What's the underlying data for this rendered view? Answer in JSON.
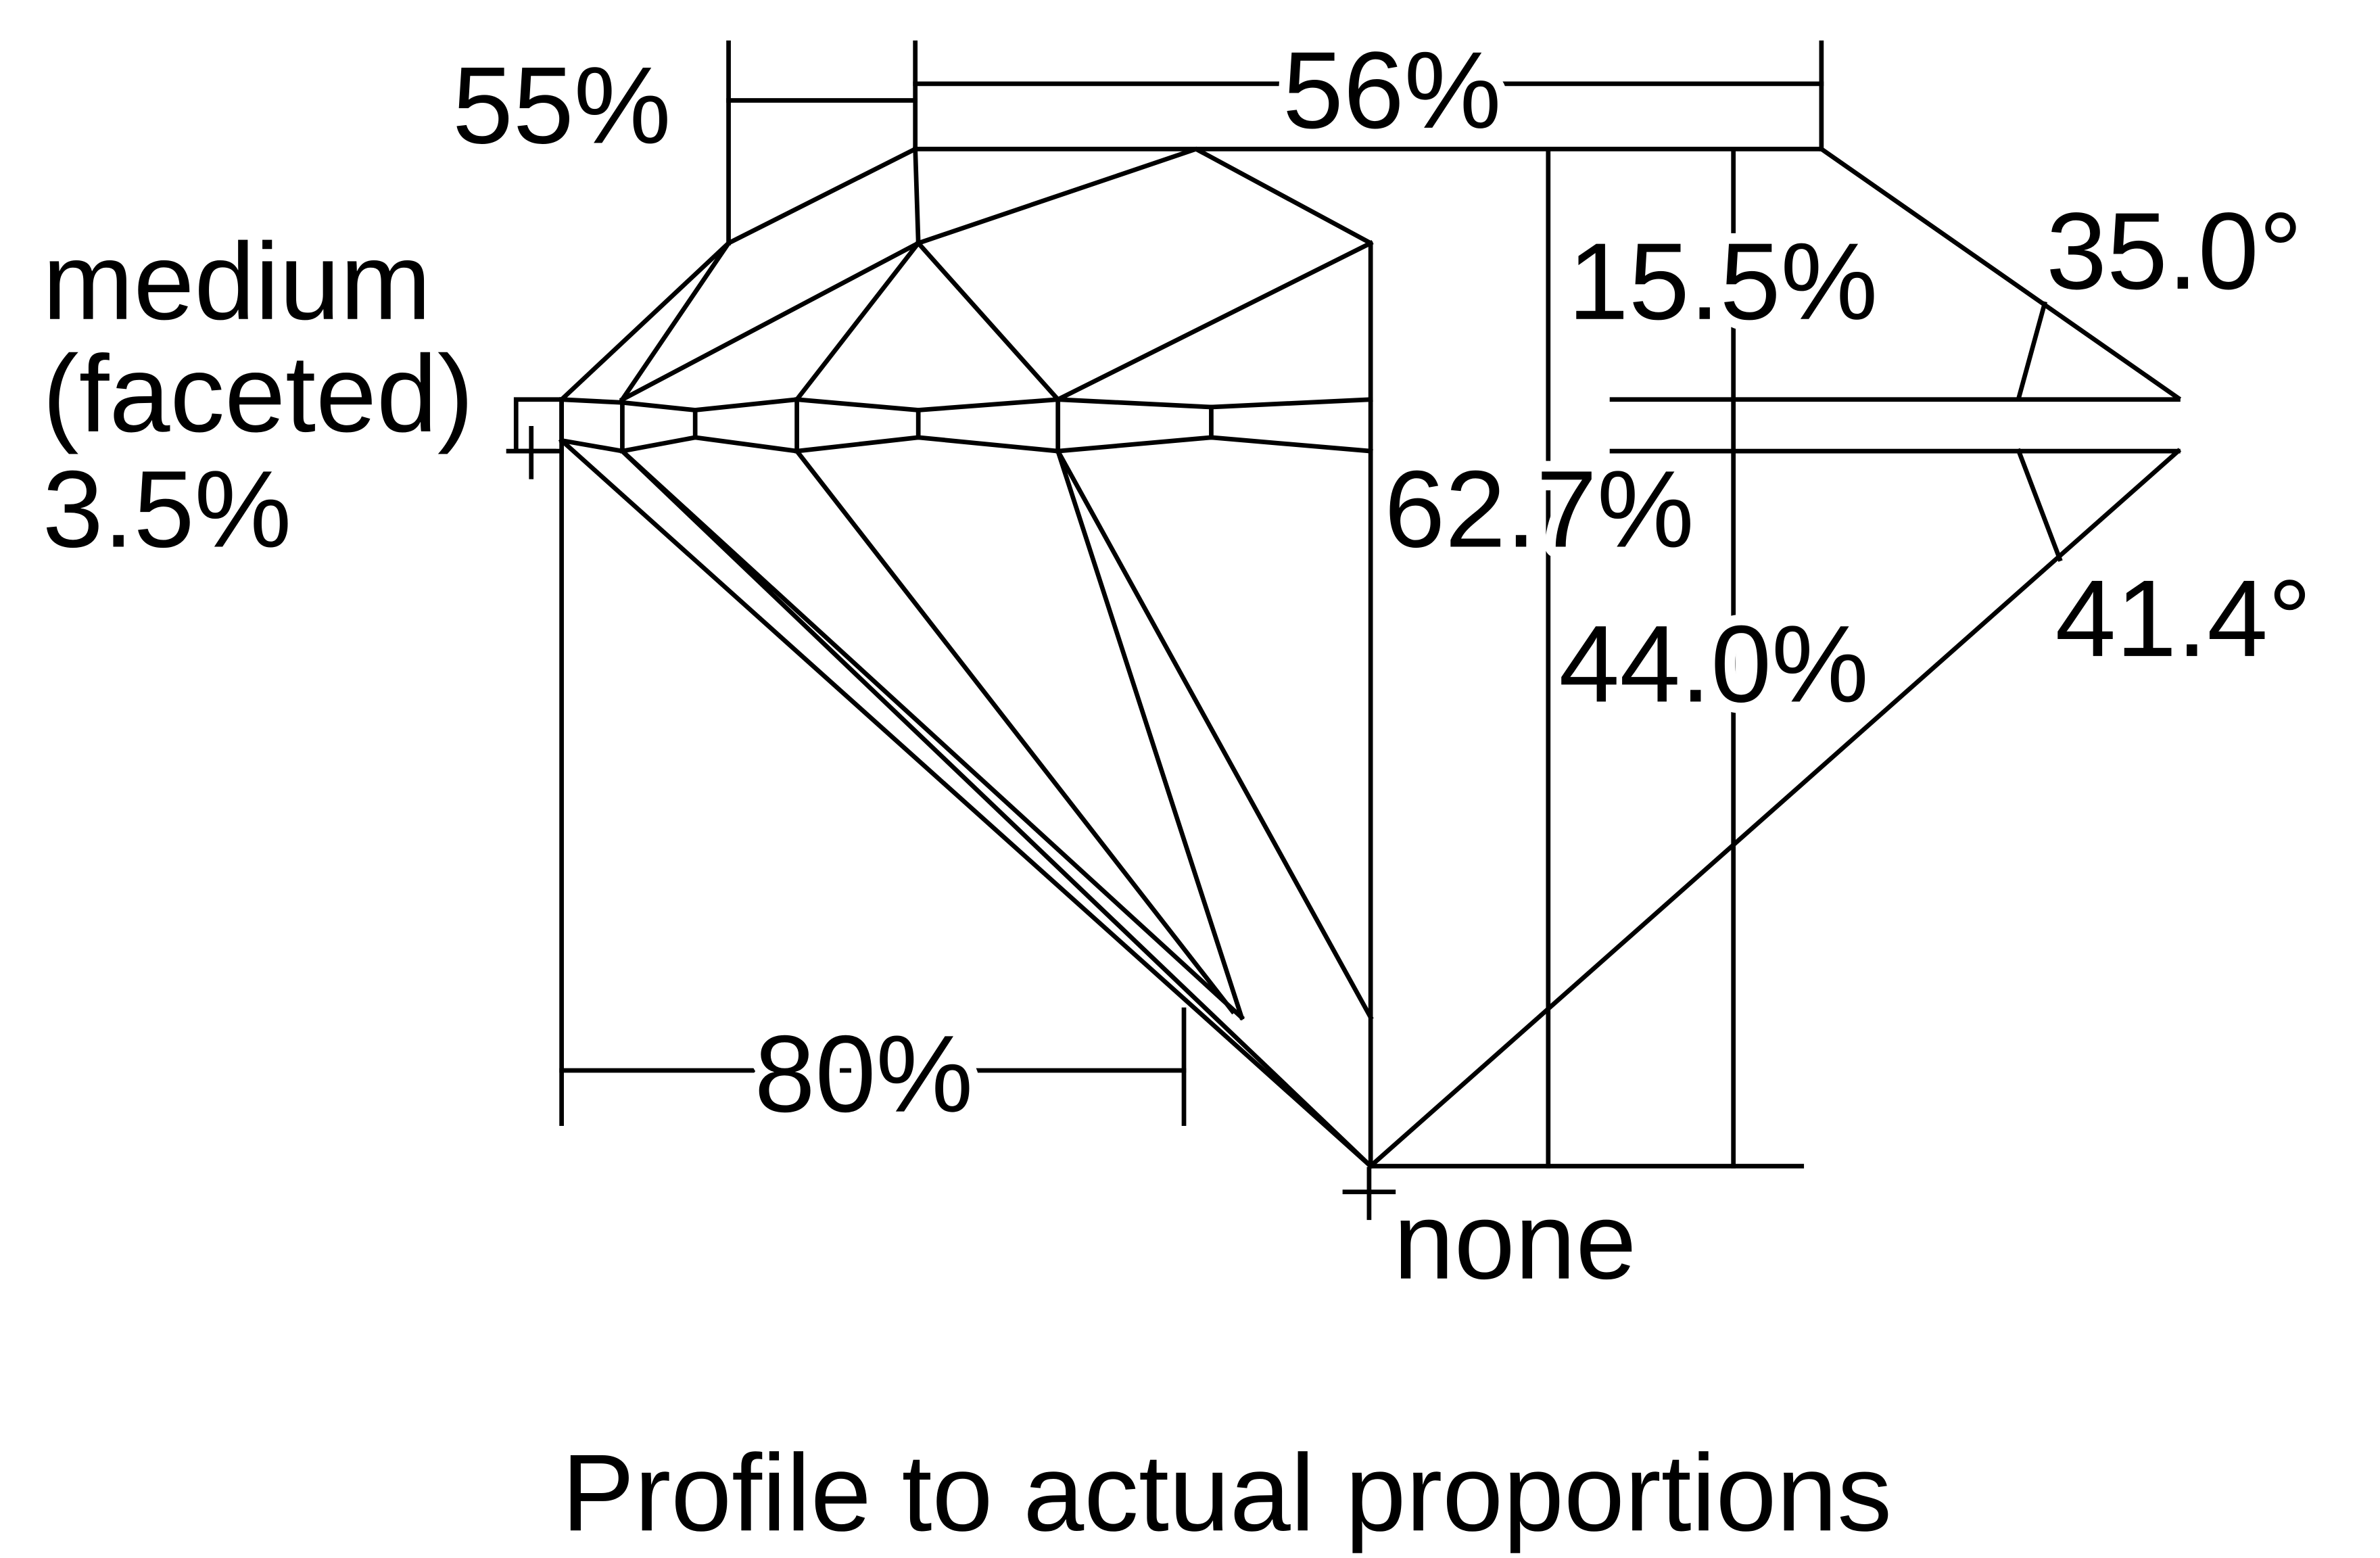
{
  "labels": {
    "crown_height": "15.5%",
    "table": "56%",
    "star_length": "55%",
    "girdle_line1": "medium",
    "girdle_line2": "(faceted)",
    "girdle_percent": "3.5%",
    "crown_angle": "35.0°",
    "total_depth": "62.7%",
    "pavilion_depth": "44.0%",
    "pavilion_angle": "41.4°",
    "lower_half": "80%",
    "culet": "none"
  },
  "title": "Profile to actual proportions",
  "colors": {
    "line": "#000000",
    "background": "#ffffff"
  }
}
